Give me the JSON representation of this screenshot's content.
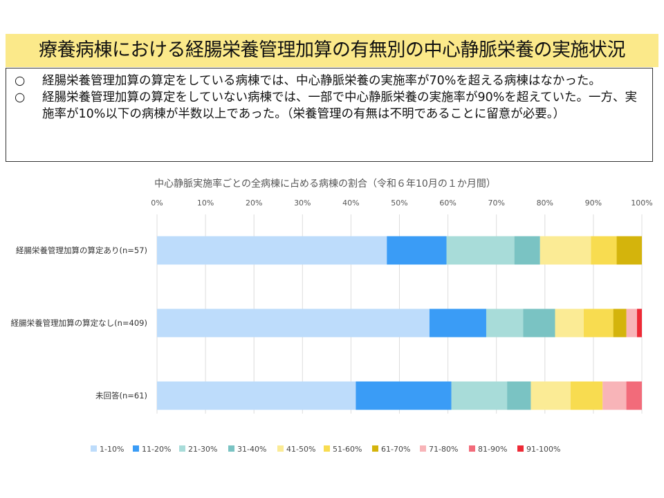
{
  "title": "療養病棟における経腸栄養管理加算の有無別の中心静脈栄養の実施状況",
  "summary": [
    {
      "mark": "○",
      "text": "経腸栄養管理加算の算定をしている病棟では、中心静脈栄養の実施率が70%を超える病棟はなかった。"
    },
    {
      "mark": "○",
      "text": "経腸栄養管理加算の算定をしていない病棟では、一部で中心静脈栄養の実施率が90%を超えていた。一方、実施率が10%以下の病棟が半数以上であった。（栄養管理の有無は不明であることに留意が必要。）"
    }
  ],
  "chart_data": {
    "type": "bar",
    "orientation": "horizontal",
    "stacked": true,
    "title": "中心静脈実施率ごとの全病棟に占める病棟の割合（令和６年10月の１か月間）",
    "xlim": [
      0,
      100
    ],
    "x_ticks": [
      "0%",
      "10%",
      "20%",
      "30%",
      "40%",
      "50%",
      "60%",
      "70%",
      "80%",
      "90%",
      "100%"
    ],
    "categories": [
      "経腸栄養管理加算の算定あり(n=57)",
      "経腸栄養管理加算の算定なし(n=409)",
      "未回答(n=61)"
    ],
    "series": [
      {
        "name": "1-10%",
        "color": "#bddcfb",
        "values": [
          47.4,
          56.2,
          41.0
        ]
      },
      {
        "name": "11-20%",
        "color": "#3a9cf6",
        "values": [
          12.3,
          11.7,
          19.7
        ]
      },
      {
        "name": "21-30%",
        "color": "#a8dcd9",
        "values": [
          14.0,
          7.6,
          11.5
        ]
      },
      {
        "name": "31-40%",
        "color": "#7ac3c3",
        "values": [
          5.3,
          6.6,
          4.9
        ]
      },
      {
        "name": "41-50%",
        "color": "#fbeb95",
        "values": [
          10.5,
          5.9,
          8.2
        ]
      },
      {
        "name": "51-60%",
        "color": "#f8dc50",
        "values": [
          5.3,
          6.1,
          6.6
        ]
      },
      {
        "name": "61-70%",
        "color": "#d4b40c",
        "values": [
          5.2,
          2.7,
          0
        ]
      },
      {
        "name": "71-80%",
        "color": "#f8b4b8",
        "values": [
          0,
          2.2,
          4.9
        ]
      },
      {
        "name": "81-90%",
        "color": "#f26b7a",
        "values": [
          0,
          0,
          3.2
        ]
      },
      {
        "name": "91-100%",
        "color": "#ee2a36",
        "values": [
          0,
          1.0,
          0
        ]
      }
    ],
    "grid": true,
    "legend_position": "bottom"
  }
}
